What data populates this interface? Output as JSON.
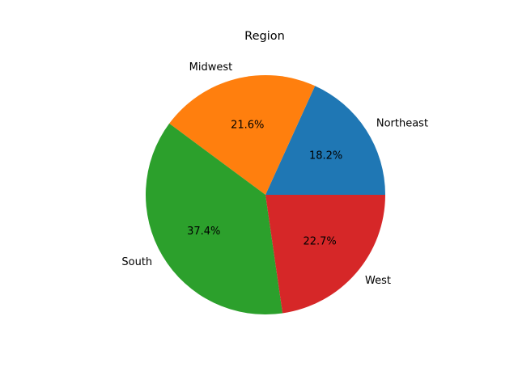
{
  "chart_data": {
    "type": "pie",
    "title": "Region",
    "categories": [
      "Northeast",
      "Midwest",
      "South",
      "West"
    ],
    "values": [
      18.2,
      21.6,
      37.4,
      22.7
    ],
    "percent_labels": [
      "18.2%",
      "21.6%",
      "37.4%",
      "22.7%"
    ],
    "colors": [
      "#1f77b4",
      "#ff7f0e",
      "#2ca02c",
      "#d62728"
    ],
    "start_angle_deg": 0,
    "direction": "counterclockwise",
    "legend": "none"
  }
}
